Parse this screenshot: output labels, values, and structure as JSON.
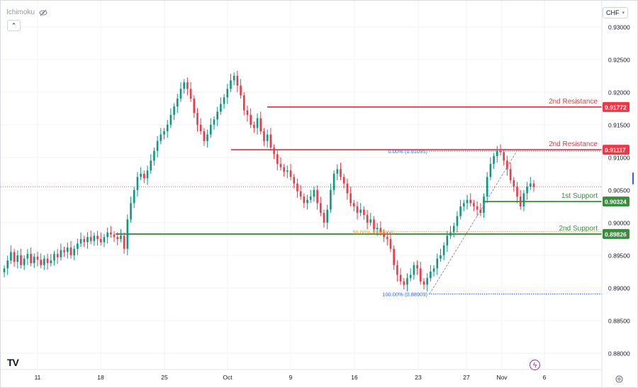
{
  "indicator_legend": {
    "label": "Ichimoku",
    "icon": "eye-crossed-icon"
  },
  "currency_selector": {
    "label": "CHF",
    "icon": "chevron-down-icon"
  },
  "collapse_icon": "chevron-up-icon",
  "logo_text": "TV",
  "settings_icon": "gear-icon",
  "lightning_icon": "lightning-icon",
  "colors": {
    "up": "#089981",
    "down": "#f23645",
    "resistance": "#f23645",
    "support": "#388e3c",
    "fib_line": "#2962ff",
    "fib_mid": "#ff9800",
    "grid": "#f0f3fa",
    "last_price": "#f23645"
  },
  "chart_data": {
    "type": "candlestick",
    "title": "",
    "xlabel": "",
    "ylabel": "",
    "ylim": [
      0.8775,
      0.934
    ],
    "y_ticks": [
      "0.93000",
      "0.92500",
      "0.92000",
      "0.91500",
      "0.91000",
      "0.90500",
      "0.90000",
      "0.89500",
      "0.89000",
      "0.88500",
      "0.88000"
    ],
    "x_ticks": [
      "11",
      "18",
      "25",
      "Oct",
      "9",
      "16",
      "23",
      "27",
      "Nov",
      "6"
    ],
    "grid": true,
    "last_price": 0.9055,
    "levels": [
      {
        "name": "2nd Resistance",
        "value": 0.91772,
        "label": "0.91772",
        "kind": "resistance"
      },
      {
        "name": "2nd Resistance",
        "value": 0.91117,
        "label": "0.91117",
        "kind": "resistance"
      },
      {
        "name": "1st Support",
        "value": 0.90324,
        "label": "0.90324",
        "kind": "support"
      },
      {
        "name": "2nd Support",
        "value": 0.89826,
        "label": "0.89826",
        "kind": "support"
      }
    ],
    "fibonacci": [
      {
        "label": "0.00% (0.91095)",
        "value": 0.91095
      },
      {
        "label": "50.00% (0.89859)",
        "value": 0.89859
      },
      {
        "label": "100.00% (0.88909)",
        "value": 0.88909
      }
    ],
    "close_series": [
      0.893,
      0.8942,
      0.8955,
      0.894,
      0.895,
      0.8935,
      0.8945,
      0.8952,
      0.8938,
      0.8948,
      0.8943,
      0.8935,
      0.8945,
      0.8938,
      0.8942,
      0.8952,
      0.8947,
      0.8958,
      0.8955,
      0.8962,
      0.895,
      0.896,
      0.8968,
      0.8975,
      0.897,
      0.8978,
      0.8972,
      0.898,
      0.8975,
      0.897,
      0.8978,
      0.8985,
      0.8982,
      0.8978,
      0.8975,
      0.898,
      0.896,
      0.9005,
      0.903,
      0.905,
      0.907,
      0.9075,
      0.9068,
      0.908,
      0.9095,
      0.911,
      0.9125,
      0.9135,
      0.914,
      0.915,
      0.9165,
      0.9178,
      0.919,
      0.9205,
      0.9215,
      0.9205,
      0.919,
      0.9168,
      0.915,
      0.914,
      0.9125,
      0.9135,
      0.915,
      0.9158,
      0.917,
      0.9182,
      0.9192,
      0.9205,
      0.9218,
      0.9225,
      0.921,
      0.9195,
      0.9172,
      0.9165,
      0.915,
      0.9145,
      0.916,
      0.914,
      0.9125,
      0.9135,
      0.9115,
      0.9105,
      0.909,
      0.9085,
      0.9078,
      0.908,
      0.907,
      0.906,
      0.9048,
      0.904,
      0.903,
      0.9035,
      0.904,
      0.905,
      0.903,
      0.9015,
      0.9,
      0.902,
      0.905,
      0.9075,
      0.9082,
      0.907,
      0.906,
      0.9045,
      0.903,
      0.9025,
      0.9015,
      0.902,
      0.9012,
      0.9,
      0.9005,
      0.899,
      0.8992,
      0.8985,
      0.8978,
      0.8975,
      0.896,
      0.8935,
      0.892,
      0.891,
      0.8905,
      0.8915,
      0.892,
      0.8935,
      0.893,
      0.891,
      0.8905,
      0.8915,
      0.8925,
      0.893,
      0.8945,
      0.895,
      0.8965,
      0.898,
      0.8985,
      0.8995,
      0.901,
      0.9025,
      0.903,
      0.9035,
      0.903,
      0.9025,
      0.902,
      0.9015,
      0.904,
      0.907,
      0.909,
      0.9102,
      0.911,
      0.9108,
      0.9095,
      0.9082,
      0.9065,
      0.9055,
      0.904,
      0.9025,
      0.9045,
      0.9055,
      0.906,
      0.9055
    ]
  }
}
